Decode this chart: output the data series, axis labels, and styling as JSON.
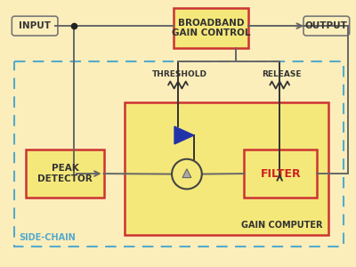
{
  "bg_color": "#fceebb",
  "box_fill_yellow": "#f5e87a",
  "box_edge_red": "#cc3333",
  "box_edge_gray": "#777777",
  "dashed_border_color": "#55aacc",
  "line_color": "#666666",
  "triangle_blue_fill": "#2233aa",
  "triangle_gray_fill": "#999999",
  "label_color_dark": "#333333",
  "label_color_red": "#cc2222",
  "label_color_cyan": "#2299bb",
  "title": "INPUT",
  "output_label": "OUTPUT",
  "threshold_label": "THRESHOLD",
  "release_label": "RELEASE",
  "peak_detector_label": "PEAK\nDETECTOR",
  "filter_label": "FILTER",
  "gain_computer_label": "GAIN COMPUTER",
  "broadband_label": "BROADBAND\nGAIN CONTROL",
  "sidechain_label": "SIDE-CHAIN"
}
